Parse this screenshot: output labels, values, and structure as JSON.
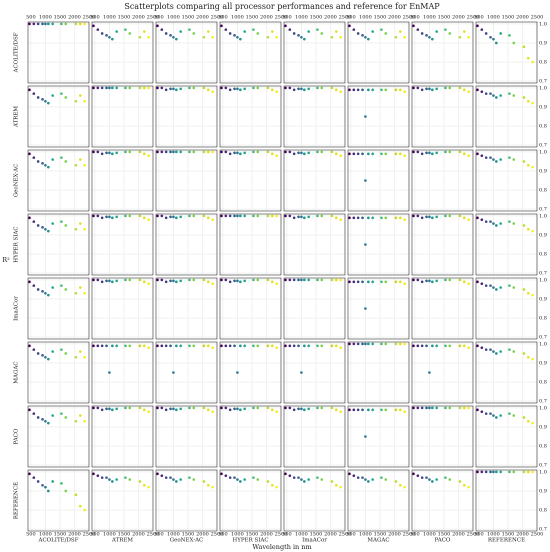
{
  "chart_data": {
    "type": "scatter",
    "title": "Scatterplots comparing all processor performances and reference for EnMAP",
    "xlabel": "Wavelength in nm",
    "ylabel": "R²",
    "variables": [
      "ACOLITE/DSF",
      "ATREM",
      "GeoNEX-AC",
      "HYPER SIAC",
      "ImaACor",
      "MAGAC",
      "PACO",
      "REFERENCE"
    ],
    "x": [
      450,
      600,
      750,
      900,
      1000,
      1100,
      1250,
      1550,
      1700,
      2050,
      2200,
      2350
    ],
    "colors": [
      "#440154",
      "#482374",
      "#404387",
      "#345e8d",
      "#29788e",
      "#20908d",
      "#22a784",
      "#42be71",
      "#7ad151",
      "#bbdf27",
      "#dde318",
      "#fde725"
    ],
    "xlim": [
      400,
      2500
    ],
    "xticks": [
      500,
      1000,
      1500,
      2000,
      2500
    ],
    "ylim": [
      0.69,
      1.01
    ],
    "yticks": [
      0.7,
      0.8,
      0.9,
      {
        "value": 1,
        "label": "1.0"
      }
    ],
    "grid": true,
    "panels": [
      [
        [
          1,
          1,
          1,
          1,
          1,
          1,
          1,
          1,
          1,
          1,
          1,
          1
        ],
        [
          0.99,
          0.97,
          0.95,
          0.94,
          0.93,
          0.92,
          0.96,
          0.97,
          0.95,
          0.93,
          0.96,
          0.93
        ],
        [
          0.99,
          0.97,
          0.95,
          0.94,
          0.93,
          0.92,
          0.96,
          0.97,
          0.95,
          0.93,
          0.96,
          0.93
        ],
        [
          0.99,
          0.97,
          0.95,
          0.94,
          0.93,
          0.92,
          0.96,
          0.97,
          0.95,
          0.93,
          0.96,
          0.93
        ],
        [
          0.99,
          0.97,
          0.95,
          0.94,
          0.93,
          0.92,
          0.96,
          0.97,
          0.95,
          0.93,
          0.96,
          0.93
        ],
        [
          0.99,
          0.97,
          0.95,
          0.94,
          0.93,
          0.92,
          0.96,
          0.97,
          0.95,
          0.93,
          0.96,
          0.93
        ],
        [
          0.99,
          0.97,
          0.95,
          0.94,
          0.93,
          0.92,
          0.96,
          0.97,
          0.95,
          0.93,
          0.96,
          0.93
        ],
        [
          0.99,
          0.97,
          0.95,
          0.93,
          0.92,
          0.9,
          0.95,
          0.94,
          0.9,
          0.88,
          0.82,
          0.8
        ]
      ],
      [
        [
          0.99,
          0.97,
          0.95,
          0.94,
          0.93,
          0.92,
          0.96,
          0.97,
          0.95,
          0.93,
          0.96,
          0.93
        ],
        [
          1,
          1,
          1,
          1,
          1,
          1,
          1,
          1,
          1,
          1,
          1,
          1
        ],
        [
          1,
          1,
          0.99,
          0.995,
          0.995,
          0.99,
          0.995,
          1,
          1,
          1,
          0.99,
          0.98
        ],
        [
          1,
          1,
          0.99,
          0.995,
          0.995,
          0.99,
          0.995,
          1,
          1,
          1,
          0.99,
          0.98
        ],
        [
          1,
          1,
          0.99,
          0.995,
          0.995,
          0.99,
          0.995,
          1,
          1,
          1,
          0.99,
          0.98
        ],
        [
          0.99,
          0.99,
          0.99,
          0.99,
          0.85,
          0.99,
          0.99,
          0.99,
          0.99,
          0.99,
          0.99,
          0.98
        ],
        [
          1,
          1,
          0.99,
          0.995,
          0.995,
          0.99,
          0.995,
          1,
          1,
          1,
          0.99,
          0.98
        ],
        [
          0.99,
          0.98,
          0.97,
          0.97,
          0.96,
          0.95,
          0.96,
          0.97,
          0.96,
          0.95,
          0.93,
          0.92
        ]
      ],
      [
        [
          0.99,
          0.97,
          0.95,
          0.94,
          0.93,
          0.92,
          0.96,
          0.97,
          0.95,
          0.93,
          0.96,
          0.93
        ],
        [
          1,
          1,
          0.99,
          0.995,
          0.995,
          0.99,
          0.995,
          1,
          1,
          1,
          0.99,
          0.98
        ],
        [
          1,
          1,
          1,
          1,
          1,
          1,
          1,
          1,
          1,
          1,
          1,
          1
        ],
        [
          1,
          1,
          0.99,
          0.995,
          0.995,
          0.99,
          0.995,
          1,
          1,
          1,
          0.99,
          0.98
        ],
        [
          1,
          1,
          0.99,
          0.995,
          0.995,
          0.99,
          0.995,
          1,
          1,
          1,
          0.99,
          0.98
        ],
        [
          0.99,
          0.99,
          0.99,
          0.99,
          0.85,
          0.99,
          0.99,
          0.99,
          0.99,
          0.99,
          0.99,
          0.98
        ],
        [
          1,
          1,
          0.99,
          0.995,
          0.995,
          0.99,
          0.995,
          1,
          1,
          1,
          0.99,
          0.98
        ],
        [
          0.99,
          0.98,
          0.97,
          0.97,
          0.96,
          0.95,
          0.96,
          0.97,
          0.96,
          0.95,
          0.93,
          0.92
        ]
      ],
      [
        [
          0.99,
          0.97,
          0.95,
          0.94,
          0.93,
          0.92,
          0.96,
          0.97,
          0.95,
          0.93,
          0.96,
          0.93
        ],
        [
          1,
          1,
          0.99,
          0.995,
          0.995,
          0.99,
          0.995,
          1,
          1,
          1,
          0.99,
          0.98
        ],
        [
          1,
          1,
          0.99,
          0.995,
          0.995,
          0.99,
          0.995,
          1,
          1,
          1,
          0.99,
          0.98
        ],
        [
          1,
          1,
          1,
          1,
          1,
          1,
          1,
          1,
          1,
          1,
          1,
          1
        ],
        [
          1,
          1,
          0.99,
          0.995,
          0.995,
          0.99,
          0.995,
          1,
          1,
          1,
          0.99,
          0.98
        ],
        [
          0.99,
          0.99,
          0.99,
          0.99,
          0.85,
          0.99,
          0.99,
          0.99,
          0.99,
          0.99,
          0.99,
          0.98
        ],
        [
          1,
          1,
          0.99,
          0.995,
          0.995,
          0.99,
          0.995,
          1,
          1,
          1,
          0.99,
          0.98
        ],
        [
          0.99,
          0.98,
          0.97,
          0.97,
          0.96,
          0.95,
          0.96,
          0.97,
          0.96,
          0.95,
          0.93,
          0.92
        ]
      ],
      [
        [
          0.99,
          0.97,
          0.95,
          0.94,
          0.93,
          0.92,
          0.96,
          0.97,
          0.95,
          0.93,
          0.96,
          0.93
        ],
        [
          1,
          1,
          0.99,
          0.995,
          0.995,
          0.99,
          0.995,
          1,
          1,
          1,
          0.99,
          0.98
        ],
        [
          1,
          1,
          0.99,
          0.995,
          0.995,
          0.99,
          0.995,
          1,
          1,
          1,
          0.99,
          0.98
        ],
        [
          1,
          1,
          0.99,
          0.995,
          0.995,
          0.99,
          0.995,
          1,
          1,
          1,
          0.99,
          0.98
        ],
        [
          1,
          1,
          1,
          1,
          1,
          1,
          1,
          1,
          1,
          1,
          1,
          1
        ],
        [
          0.99,
          0.99,
          0.99,
          0.99,
          0.85,
          0.99,
          0.99,
          0.99,
          0.99,
          0.99,
          0.99,
          0.98
        ],
        [
          1,
          1,
          0.99,
          0.995,
          0.995,
          0.99,
          0.995,
          1,
          1,
          1,
          0.99,
          0.98
        ],
        [
          0.99,
          0.98,
          0.97,
          0.97,
          0.96,
          0.95,
          0.96,
          0.97,
          0.96,
          0.95,
          0.93,
          0.92
        ]
      ],
      [
        [
          0.99,
          0.97,
          0.95,
          0.94,
          0.93,
          0.92,
          0.96,
          0.97,
          0.95,
          0.93,
          0.96,
          0.93
        ],
        [
          0.99,
          0.99,
          0.99,
          0.99,
          0.85,
          0.99,
          0.99,
          0.99,
          0.99,
          0.99,
          0.99,
          0.98
        ],
        [
          0.99,
          0.99,
          0.99,
          0.99,
          0.85,
          0.99,
          0.99,
          0.99,
          0.99,
          0.99,
          0.99,
          0.98
        ],
        [
          0.99,
          0.99,
          0.99,
          0.99,
          0.85,
          0.99,
          0.99,
          0.99,
          0.99,
          0.99,
          0.99,
          0.98
        ],
        [
          0.99,
          0.99,
          0.99,
          0.99,
          0.85,
          0.99,
          0.99,
          0.99,
          0.99,
          0.99,
          0.99,
          0.98
        ],
        [
          1,
          1,
          1,
          1,
          1,
          1,
          1,
          1,
          1,
          1,
          1,
          1
        ],
        [
          0.99,
          0.99,
          0.99,
          0.99,
          0.85,
          0.99,
          0.99,
          0.99,
          0.99,
          0.99,
          0.99,
          0.98
        ],
        [
          0.99,
          0.98,
          0.97,
          0.97,
          0.96,
          0.95,
          0.96,
          0.97,
          0.96,
          0.95,
          0.93,
          0.92
        ]
      ],
      [
        [
          0.99,
          0.97,
          0.95,
          0.94,
          0.93,
          0.92,
          0.96,
          0.97,
          0.95,
          0.93,
          0.96,
          0.93
        ],
        [
          1,
          1,
          0.99,
          0.995,
          0.995,
          0.99,
          0.995,
          1,
          1,
          1,
          0.99,
          0.98
        ],
        [
          1,
          1,
          0.99,
          0.995,
          0.995,
          0.99,
          0.995,
          1,
          1,
          1,
          0.99,
          0.98
        ],
        [
          1,
          1,
          0.99,
          0.995,
          0.995,
          0.99,
          0.995,
          1,
          1,
          1,
          0.99,
          0.98
        ],
        [
          1,
          1,
          0.99,
          0.995,
          0.995,
          0.99,
          0.995,
          1,
          1,
          1,
          0.99,
          0.98
        ],
        [
          0.99,
          0.99,
          0.99,
          0.99,
          0.85,
          0.99,
          0.99,
          0.99,
          0.99,
          0.99,
          0.99,
          0.98
        ],
        [
          1,
          1,
          1,
          1,
          1,
          1,
          1,
          1,
          1,
          1,
          1,
          1
        ],
        [
          0.99,
          0.98,
          0.97,
          0.97,
          0.96,
          0.95,
          0.96,
          0.97,
          0.96,
          0.95,
          0.93,
          0.92
        ]
      ],
      [
        [
          0.99,
          0.97,
          0.95,
          0.93,
          0.92,
          0.9,
          0.95,
          0.94,
          0.9,
          0.88,
          0.82,
          0.8
        ],
        [
          0.99,
          0.98,
          0.97,
          0.97,
          0.96,
          0.95,
          0.96,
          0.97,
          0.96,
          0.95,
          0.93,
          0.92
        ],
        [
          0.99,
          0.98,
          0.97,
          0.97,
          0.96,
          0.95,
          0.96,
          0.97,
          0.96,
          0.95,
          0.93,
          0.92
        ],
        [
          0.99,
          0.98,
          0.97,
          0.97,
          0.96,
          0.95,
          0.96,
          0.97,
          0.96,
          0.95,
          0.93,
          0.92
        ],
        [
          0.99,
          0.98,
          0.97,
          0.97,
          0.96,
          0.95,
          0.96,
          0.97,
          0.96,
          0.95,
          0.93,
          0.92
        ],
        [
          0.99,
          0.98,
          0.97,
          0.97,
          0.96,
          0.95,
          0.96,
          0.97,
          0.96,
          0.95,
          0.93,
          0.92
        ],
        [
          0.99,
          0.98,
          0.97,
          0.97,
          0.96,
          0.95,
          0.96,
          0.97,
          0.96,
          0.95,
          0.93,
          0.92
        ],
        [
          1,
          1,
          1,
          1,
          1,
          1,
          1,
          1,
          1,
          1,
          1,
          1
        ]
      ]
    ]
  }
}
